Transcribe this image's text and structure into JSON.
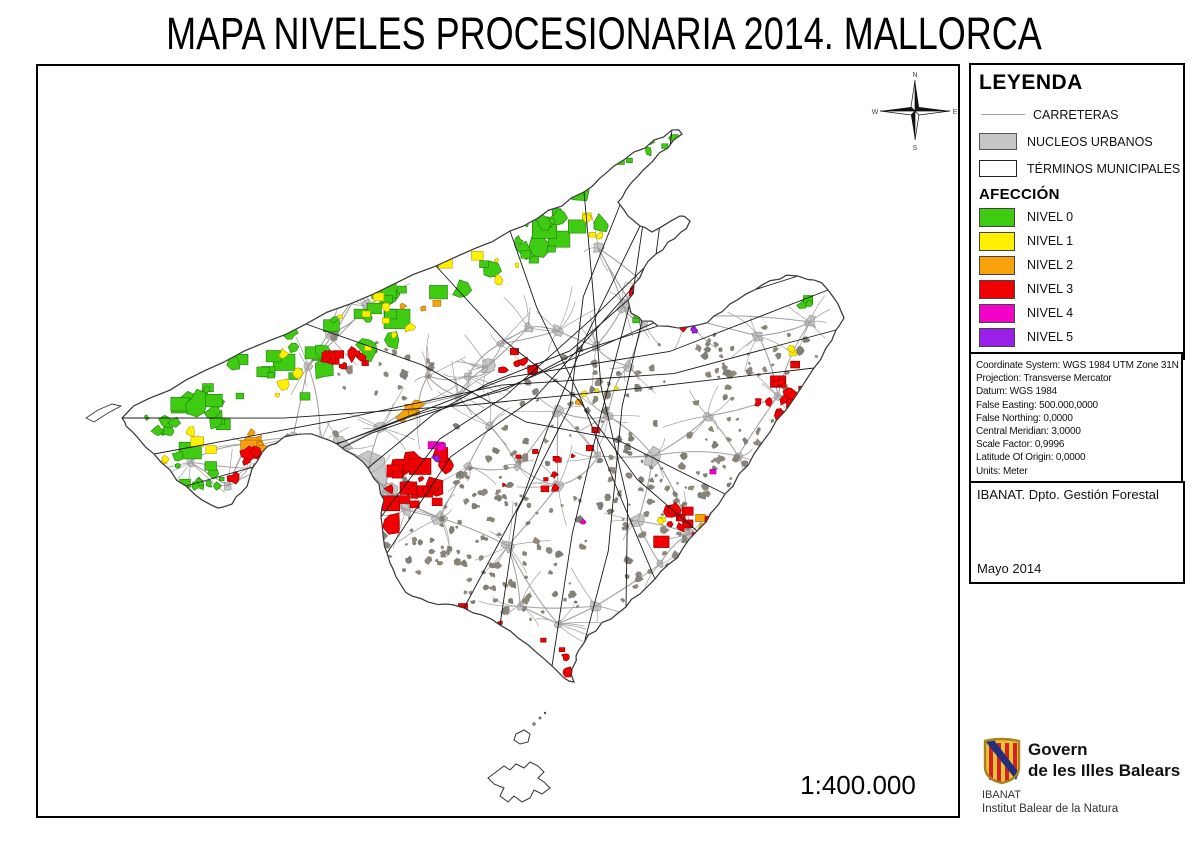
{
  "title": "MAPA NIVELES PROCESIONARIA 2014. MALLORCA",
  "map": {
    "scale_label": "1:400.000",
    "compass": {
      "n": "N",
      "e": "E",
      "s": "S",
      "w": "W"
    }
  },
  "legend": {
    "heading": "LEYENDA",
    "items": [
      {
        "label": "CARRETERAS",
        "type": "line",
        "color": "#a0a0a0"
      },
      {
        "label": "NUCLEOS URBANOS",
        "type": "fill",
        "color": "#c6c6c6"
      },
      {
        "label": "TÉRMINOS MUNICIPALES",
        "type": "fill",
        "color": "#ffffff"
      }
    ],
    "affection_heading": "AFECCIÓN",
    "levels": [
      {
        "label": "NIVEL 0",
        "color": "#3fcb12"
      },
      {
        "label": "NIVEL 1",
        "color": "#fff000"
      },
      {
        "label": "NIVEL 2",
        "color": "#f7a10b"
      },
      {
        "label": "NIVEL 3",
        "color": "#f00000"
      },
      {
        "label": "NIVEL 4",
        "color": "#f203c9"
      },
      {
        "label": "NIVEL 5",
        "color": "#9a1fe8"
      }
    ]
  },
  "coordinate_info": {
    "lines": [
      "Coordinate System: WGS 1984 UTM Zone 31N",
      "Projection: Transverse Mercator",
      "Datum: WGS 1984",
      "False Easting: 500.000,0000",
      "False Northing: 0,0000",
      "Central Meridian: 3,0000",
      "Scale Factor: 0,9996",
      "Latitude Of Origin: 0,0000",
      "Units: Meter"
    ]
  },
  "credits": {
    "department": "IBANAT. Dpto. Gestión Forestal",
    "date": "Mayo 2014"
  },
  "logo": {
    "org_line1": "Govern",
    "org_line2": "de les Illes Balears",
    "sub_line1": "IBANAT",
    "sub_line2": "Institut Balear de la Natura"
  }
}
